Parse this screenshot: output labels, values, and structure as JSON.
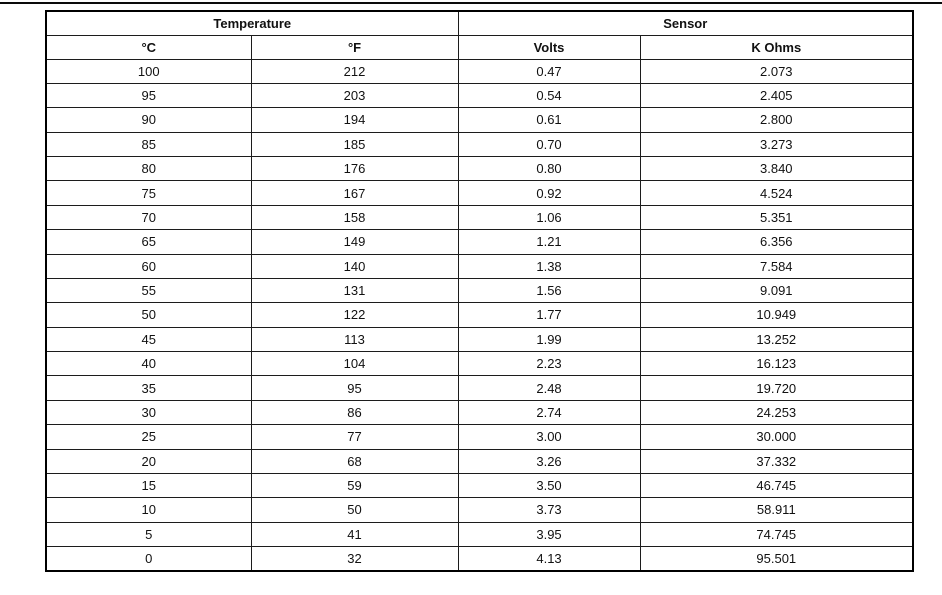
{
  "table": {
    "group_headers": [
      {
        "label": "Temperature",
        "colspan": 2
      },
      {
        "label": "Sensor",
        "colspan": 2
      }
    ],
    "columns": [
      "°C",
      "°F",
      "Volts",
      "K Ohms"
    ],
    "column_keys": [
      "celsius",
      "fahrenheit",
      "volts",
      "kohms"
    ],
    "rows": [
      [
        "100",
        "212",
        "0.47",
        "2.073"
      ],
      [
        "95",
        "203",
        "0.54",
        "2.405"
      ],
      [
        "90",
        "194",
        "0.61",
        "2.800"
      ],
      [
        "85",
        "185",
        "0.70",
        "3.273"
      ],
      [
        "80",
        "176",
        "0.80",
        "3.840"
      ],
      [
        "75",
        "167",
        "0.92",
        "4.524"
      ],
      [
        "70",
        "158",
        "1.06",
        "5.351"
      ],
      [
        "65",
        "149",
        "1.21",
        "6.356"
      ],
      [
        "60",
        "140",
        "1.38",
        "7.584"
      ],
      [
        "55",
        "131",
        "1.56",
        "9.091"
      ],
      [
        "50",
        "122",
        "1.77",
        "10.949"
      ],
      [
        "45",
        "113",
        "1.99",
        "13.252"
      ],
      [
        "40",
        "104",
        "2.23",
        "16.123"
      ],
      [
        "35",
        "95",
        "2.48",
        "19.720"
      ],
      [
        "30",
        "86",
        "2.74",
        "24.253"
      ],
      [
        "25",
        "77",
        "3.00",
        "30.000"
      ],
      [
        "20",
        "68",
        "3.26",
        "37.332"
      ],
      [
        "15",
        "59",
        "3.50",
        "46.745"
      ],
      [
        "10",
        "50",
        "3.73",
        "58.911"
      ],
      [
        "5",
        "41",
        "3.95",
        "74.745"
      ],
      [
        "0",
        "32",
        "4.13",
        "95.501"
      ]
    ],
    "colors": {
      "border_outer": "#000000",
      "border_inner": "#1c1c1c",
      "text": "#111111",
      "background": "#ffffff"
    }
  }
}
